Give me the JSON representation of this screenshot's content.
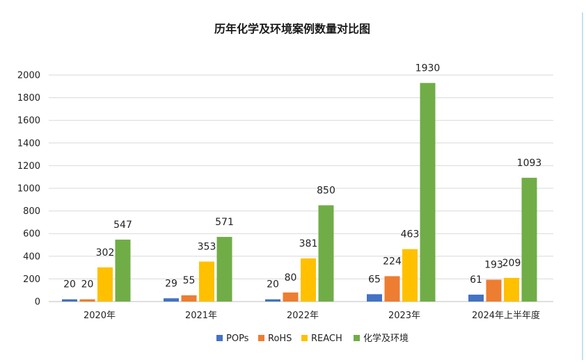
{
  "chart_data": {
    "type": "bar",
    "title": "历年化学及环境案例数量对比图",
    "categories": [
      "2020年",
      "2021年",
      "2022年",
      "2023年",
      "2024年上半年度"
    ],
    "series": [
      {
        "name": "POPs",
        "color": "#4472c4",
        "values": [
          20,
          29,
          20,
          65,
          61
        ]
      },
      {
        "name": "RoHS",
        "color": "#ed7d31",
        "values": [
          20,
          55,
          80,
          224,
          193
        ]
      },
      {
        "name": "REACH",
        "color": "#ffc000",
        "values": [
          302,
          353,
          381,
          463,
          209
        ]
      },
      {
        "name": "化学及环境",
        "color": "#70ad47",
        "values": [
          547,
          571,
          850,
          1930,
          1093
        ]
      }
    ],
    "y_ticks": [
      0,
      200,
      400,
      600,
      800,
      1000,
      1200,
      1400,
      1600,
      1800,
      2000
    ],
    "ylim": [
      0,
      2000
    ],
    "grid": true,
    "legend_position": "bottom"
  }
}
